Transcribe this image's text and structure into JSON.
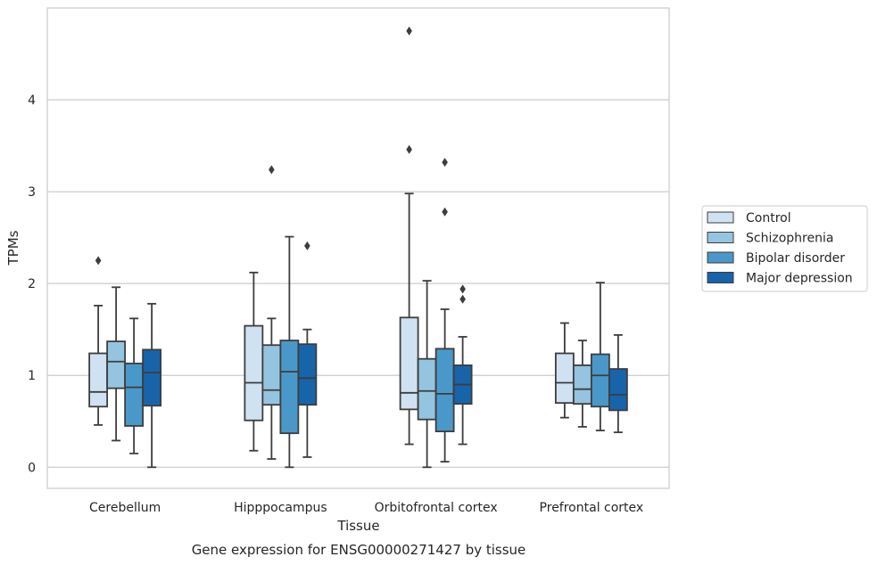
{
  "chart_data": {
    "type": "box",
    "title": "Gene expression for ENSG00000271427 by tissue",
    "xlabel": "Tissue",
    "ylabel": "TPMs",
    "ylim": [
      -0.23,
      5.0
    ],
    "yticks": [
      0,
      1,
      2,
      3,
      4
    ],
    "grid": "horizontal",
    "legend": "right",
    "categories": [
      "Cerebellum",
      "Hipppocampus",
      "Orbitofrontal cortex",
      "Prefrontal cortex"
    ],
    "series": [
      {
        "name": "Control",
        "color": "#d0e1f2",
        "boxes": [
          {
            "whislo": 0.46,
            "q1": 0.66,
            "med": 0.82,
            "q3": 1.24,
            "whishi": 1.76,
            "fliers": [
              2.25
            ]
          },
          {
            "whislo": 0.18,
            "q1": 0.51,
            "med": 0.92,
            "q3": 1.54,
            "whishi": 2.12,
            "fliers": []
          },
          {
            "whislo": 0.25,
            "q1": 0.63,
            "med": 0.81,
            "q3": 1.63,
            "whishi": 2.98,
            "fliers": [
              3.46,
              4.75
            ]
          },
          {
            "whislo": 0.54,
            "q1": 0.7,
            "med": 0.92,
            "q3": 1.24,
            "whishi": 1.57,
            "fliers": []
          }
        ]
      },
      {
        "name": "Schizophrenia",
        "color": "#94c4df",
        "boxes": [
          {
            "whislo": 0.29,
            "q1": 0.86,
            "med": 1.15,
            "q3": 1.37,
            "whishi": 1.96,
            "fliers": []
          },
          {
            "whislo": 0.09,
            "q1": 0.68,
            "med": 0.84,
            "q3": 1.33,
            "whishi": 1.62,
            "fliers": [
              3.24
            ]
          },
          {
            "whislo": 0.0,
            "q1": 0.52,
            "med": 0.83,
            "q3": 1.18,
            "whishi": 2.03,
            "fliers": []
          },
          {
            "whislo": 0.44,
            "q1": 0.69,
            "med": 0.85,
            "q3": 1.11,
            "whishi": 1.38,
            "fliers": []
          }
        ]
      },
      {
        "name": "Bipolar disorder",
        "color": "#4a98c9",
        "boxes": [
          {
            "whislo": 0.15,
            "q1": 0.45,
            "med": 0.87,
            "q3": 1.13,
            "whishi": 1.62,
            "fliers": []
          },
          {
            "whislo": 0.0,
            "q1": 0.37,
            "med": 1.04,
            "q3": 1.38,
            "whishi": 2.51,
            "fliers": []
          },
          {
            "whislo": 0.06,
            "q1": 0.39,
            "med": 0.8,
            "q3": 1.29,
            "whishi": 1.72,
            "fliers": [
              2.78,
              3.32
            ]
          },
          {
            "whislo": 0.4,
            "q1": 0.66,
            "med": 1.0,
            "q3": 1.23,
            "whishi": 2.01,
            "fliers": []
          }
        ]
      },
      {
        "name": "Major depression",
        "color": "#1764ab",
        "boxes": [
          {
            "whislo": 0.0,
            "q1": 0.67,
            "med": 1.03,
            "q3": 1.28,
            "whishi": 1.78,
            "fliers": []
          },
          {
            "whislo": 0.11,
            "q1": 0.68,
            "med": 0.97,
            "q3": 1.34,
            "whishi": 1.5,
            "fliers": [
              2.41
            ]
          },
          {
            "whislo": 0.25,
            "q1": 0.69,
            "med": 0.9,
            "q3": 1.11,
            "whishi": 1.42,
            "fliers": [
              1.83,
              1.94
            ]
          },
          {
            "whislo": 0.38,
            "q1": 0.62,
            "med": 0.79,
            "q3": 1.07,
            "whishi": 1.44,
            "fliers": []
          }
        ]
      }
    ]
  }
}
